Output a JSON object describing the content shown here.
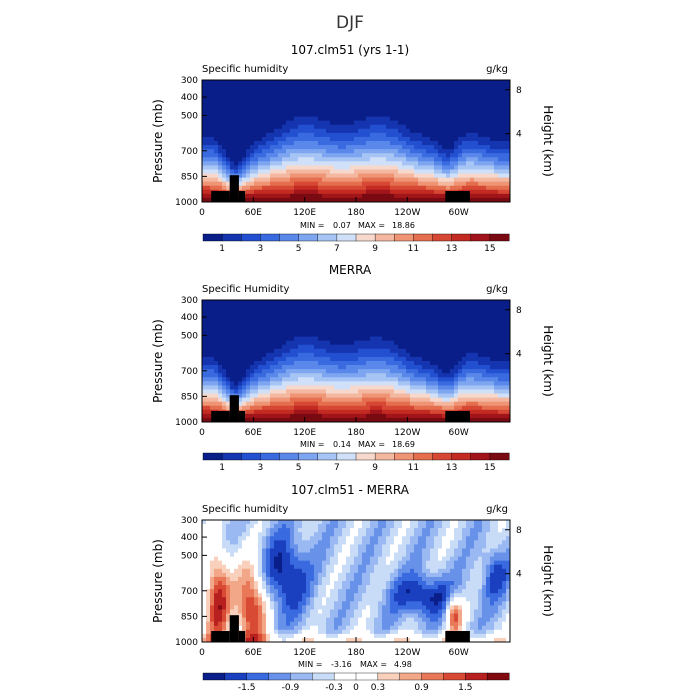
{
  "figure_title": "DJF",
  "chart_data": [
    {
      "type": "heatmap",
      "title": "107.clm51 (yrs 1-1)",
      "left_label": "Specific humidity",
      "units": "g/kg",
      "ylabel": "Pressure (mb)",
      "ylabel2": "Height (km)",
      "pressure_ticks": [
        "300",
        "400",
        "500",
        "700",
        "850",
        "1000"
      ],
      "height_ticks": [
        "8",
        "4"
      ],
      "lon_ticks": [
        "0",
        "60E",
        "120E",
        "180",
        "120W",
        "60W"
      ],
      "min_label": "MIN =",
      "min_value": "0.07",
      "max_label": "MAX =",
      "max_value": "18.86",
      "colorbar_labels": [
        "1",
        "3",
        "5",
        "7",
        "9",
        "11",
        "13",
        "15"
      ],
      "field": "model",
      "vmin": 0,
      "vmax": 16
    },
    {
      "type": "heatmap",
      "title": "MERRA",
      "left_label": "Specific Humidity",
      "units": "g/kg",
      "ylabel": "Pressure (mb)",
      "ylabel2": "Height (km)",
      "pressure_ticks": [
        "300",
        "400",
        "500",
        "700",
        "850",
        "1000"
      ],
      "height_ticks": [
        "8",
        "4"
      ],
      "lon_ticks": [
        "0",
        "60E",
        "120E",
        "180",
        "120W",
        "60W"
      ],
      "min_label": "MIN =",
      "min_value": "0.14",
      "max_label": "MAX =",
      "max_value": "18.69",
      "colorbar_labels": [
        "1",
        "3",
        "5",
        "7",
        "9",
        "11",
        "13",
        "15"
      ],
      "field": "obs",
      "vmin": 0,
      "vmax": 16
    },
    {
      "type": "heatmap",
      "title": "107.clm51 - MERRA",
      "left_label": "Specific humidity",
      "units": "g/kg",
      "ylabel": "Pressure (mb)",
      "ylabel2": "Height (km)",
      "pressure_ticks": [
        "300",
        "400",
        "500",
        "700",
        "850",
        "1000"
      ],
      "height_ticks": [
        "8",
        "4"
      ],
      "lon_ticks": [
        "0",
        "60E",
        "120E",
        "180",
        "120W",
        "60W"
      ],
      "min_label": "MIN =",
      "min_value": "-3.16",
      "max_label": "MAX =",
      "max_value": "4.98",
      "colorbar_labels": [
        "-1.5",
        "-0.9",
        "-0.3",
        "0",
        "0.3",
        "0.9",
        "1.5"
      ],
      "field": "diff",
      "vmin": -2,
      "vmax": 2
    }
  ],
  "colors": {
    "colorbar16": [
      "#0a1e8a",
      "#1535b0",
      "#2350d0",
      "#3a6ae0",
      "#5a88ea",
      "#7ea6f0",
      "#a6c4f4",
      "#cfe0f8",
      "#f6d8cc",
      "#f4b8a0",
      "#ef9474",
      "#e46e4e",
      "#d64834",
      "#c22a22",
      "#a0141a",
      "#7a0a12"
    ],
    "colorbar_diff": [
      "#0a1e8a",
      "#1a40c0",
      "#3a6ae0",
      "#6892ea",
      "#9ab8f2",
      "#c8dcf8",
      "#ffffff",
      "#ffffff",
      "#f8d0bc",
      "#f2a888",
      "#e87858",
      "#d84a34",
      "#b82020",
      "#800a10"
    ],
    "terrain": "#000000"
  }
}
